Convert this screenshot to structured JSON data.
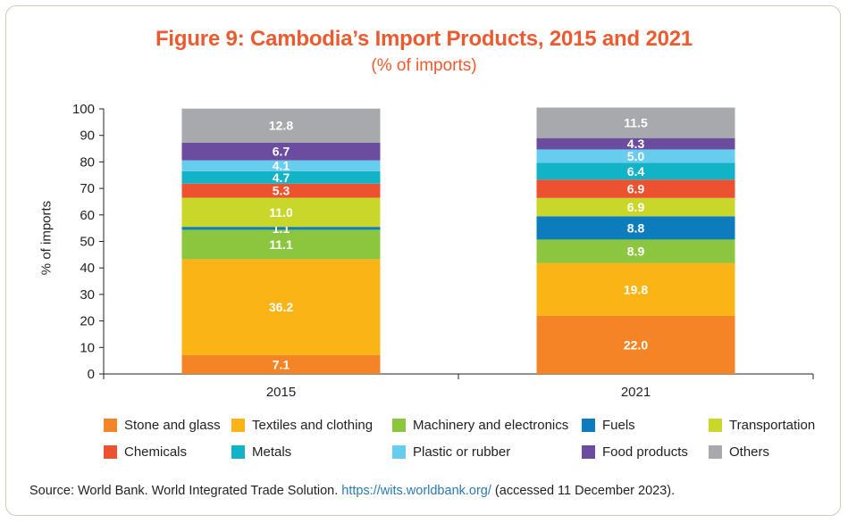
{
  "chart_data": {
    "type": "bar",
    "stacked": true,
    "title": "Figure 9: Cambodia’s Import Products, 2015 and 2021",
    "subtitle": "(% of imports)",
    "xlabel": "",
    "ylabel": "% of imports",
    "ylim": [
      0,
      100
    ],
    "yticks": [
      0,
      10,
      20,
      30,
      40,
      50,
      60,
      70,
      80,
      90,
      100
    ],
    "categories": [
      "2015",
      "2021"
    ],
    "series": [
      {
        "name": "Stone and glass",
        "color": "#f58426",
        "values": [
          7.1,
          22.0
        ],
        "labels": [
          "7.1",
          "22.0"
        ]
      },
      {
        "name": "Textiles and clothing",
        "color": "#fbb416",
        "values": [
          36.2,
          19.8
        ],
        "labels": [
          "36.2",
          "19.8"
        ]
      },
      {
        "name": "Machinery and electronics",
        "color": "#8cc63f",
        "values": [
          11.1,
          8.9
        ],
        "labels": [
          "11.1",
          "8.9"
        ]
      },
      {
        "name": "Fuels",
        "color": "#0d7cbd",
        "values": [
          1.1,
          8.8
        ],
        "labels": [
          "1.1",
          "8.8"
        ]
      },
      {
        "name": "Transportation",
        "color": "#c9d72b",
        "values": [
          11.0,
          6.9
        ],
        "labels": [
          "11.0",
          "6.9"
        ]
      },
      {
        "name": "Chemicals",
        "color": "#ec5130",
        "values": [
          5.3,
          6.9
        ],
        "labels": [
          "5.3",
          "6.9"
        ]
      },
      {
        "name": "Metals",
        "color": "#12b3c6",
        "values": [
          4.7,
          6.4
        ],
        "labels": [
          "4.7",
          "6.4"
        ]
      },
      {
        "name": "Plastic or rubber",
        "color": "#67cdee",
        "values": [
          4.1,
          5.0
        ],
        "labels": [
          "4.1",
          "5.0"
        ]
      },
      {
        "name": "Food products",
        "color": "#6c4c9f",
        "values": [
          6.7,
          4.3
        ],
        "labels": [
          "6.7",
          "4.3"
        ]
      },
      {
        "name": "Others",
        "color": "#a7a9ac",
        "values": [
          12.8,
          11.5
        ],
        "labels": [
          "12.8",
          "11.5"
        ]
      }
    ],
    "legend_position": "bottom"
  },
  "source": {
    "prefix": "Source: World Bank. World Integrated Trade Solution. ",
    "link": "https://wits.worldbank.org/",
    "suffix": " (accessed 11 December 2023)."
  }
}
